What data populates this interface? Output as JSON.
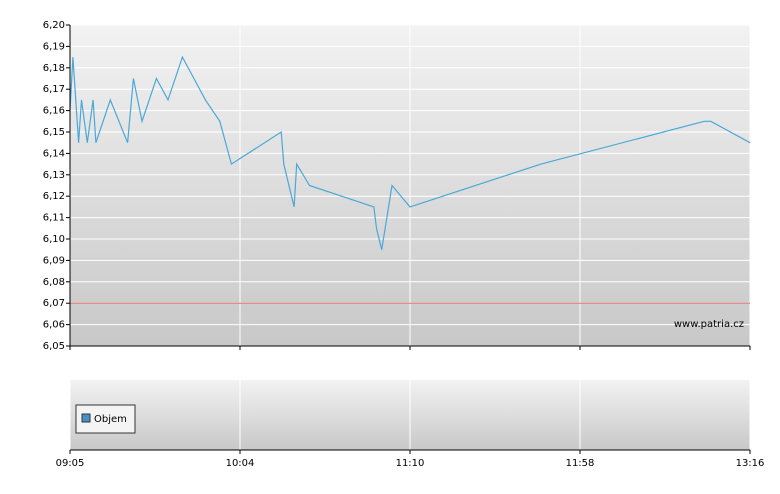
{
  "chart_data": {
    "type": "line",
    "x": [
      "09:05",
      "09:06",
      "09:08",
      "09:09",
      "09:11",
      "09:13",
      "09:14",
      "09:19",
      "09:25",
      "09:27",
      "09:30",
      "09:35",
      "09:39",
      "09:44",
      "09:48",
      "09:52",
      "09:57",
      "10:01",
      "10:20",
      "10:21",
      "10:25",
      "10:26",
      "10:31",
      "10:56",
      "10:57",
      "10:59",
      "11:03",
      "11:10",
      "11:47",
      "12:55",
      "12:58",
      "13:16"
    ],
    "series": [
      {
        "color": "#4aa8d8",
        "values": [
          6.16,
          6.185,
          6.145,
          6.165,
          6.145,
          6.165,
          6.145,
          6.165,
          6.145,
          6.175,
          6.155,
          6.175,
          6.165,
          6.185,
          6.175,
          6.165,
          6.155,
          6.135,
          6.15,
          6.135,
          6.115,
          6.135,
          6.125,
          6.115,
          6.105,
          6.095,
          6.125,
          6.115,
          6.135,
          6.155,
          6.155,
          6.145
        ]
      }
    ],
    "xlim": [
      "09:05",
      "13:16"
    ],
    "xticks": [
      "09:05",
      "10:04",
      "11:10",
      "11:58",
      "13:16"
    ],
    "ylim": [
      6.05,
      6.2
    ],
    "yticks": [
      {
        "value": 6.05,
        "label": "6,05"
      },
      {
        "value": 6.06,
        "label": "6,06"
      },
      {
        "value": 6.07,
        "label": "6,07"
      },
      {
        "value": 6.08,
        "label": "6,08"
      },
      {
        "value": 6.09,
        "label": "6,09"
      },
      {
        "value": 6.1,
        "label": "6,10"
      },
      {
        "value": 6.11,
        "label": "6,11"
      },
      {
        "value": 6.12,
        "label": "6,12"
      },
      {
        "value": 6.13,
        "label": "6,13"
      },
      {
        "value": 6.14,
        "label": "6,14"
      },
      {
        "value": 6.15,
        "label": "6,15"
      },
      {
        "value": 6.16,
        "label": "6,16"
      },
      {
        "value": 6.17,
        "label": "6,17"
      },
      {
        "value": 6.18,
        "label": "6,18"
      },
      {
        "value": 6.19,
        "label": "6,19"
      },
      {
        "value": 6.2,
        "label": "6,20"
      }
    ],
    "reference_line": {
      "value": 6.07,
      "color": "#e07070"
    },
    "grid": true,
    "watermark": "www.patria.cz",
    "volume_panel": {
      "legend": "Objem",
      "color": "#4a90c8"
    }
  }
}
